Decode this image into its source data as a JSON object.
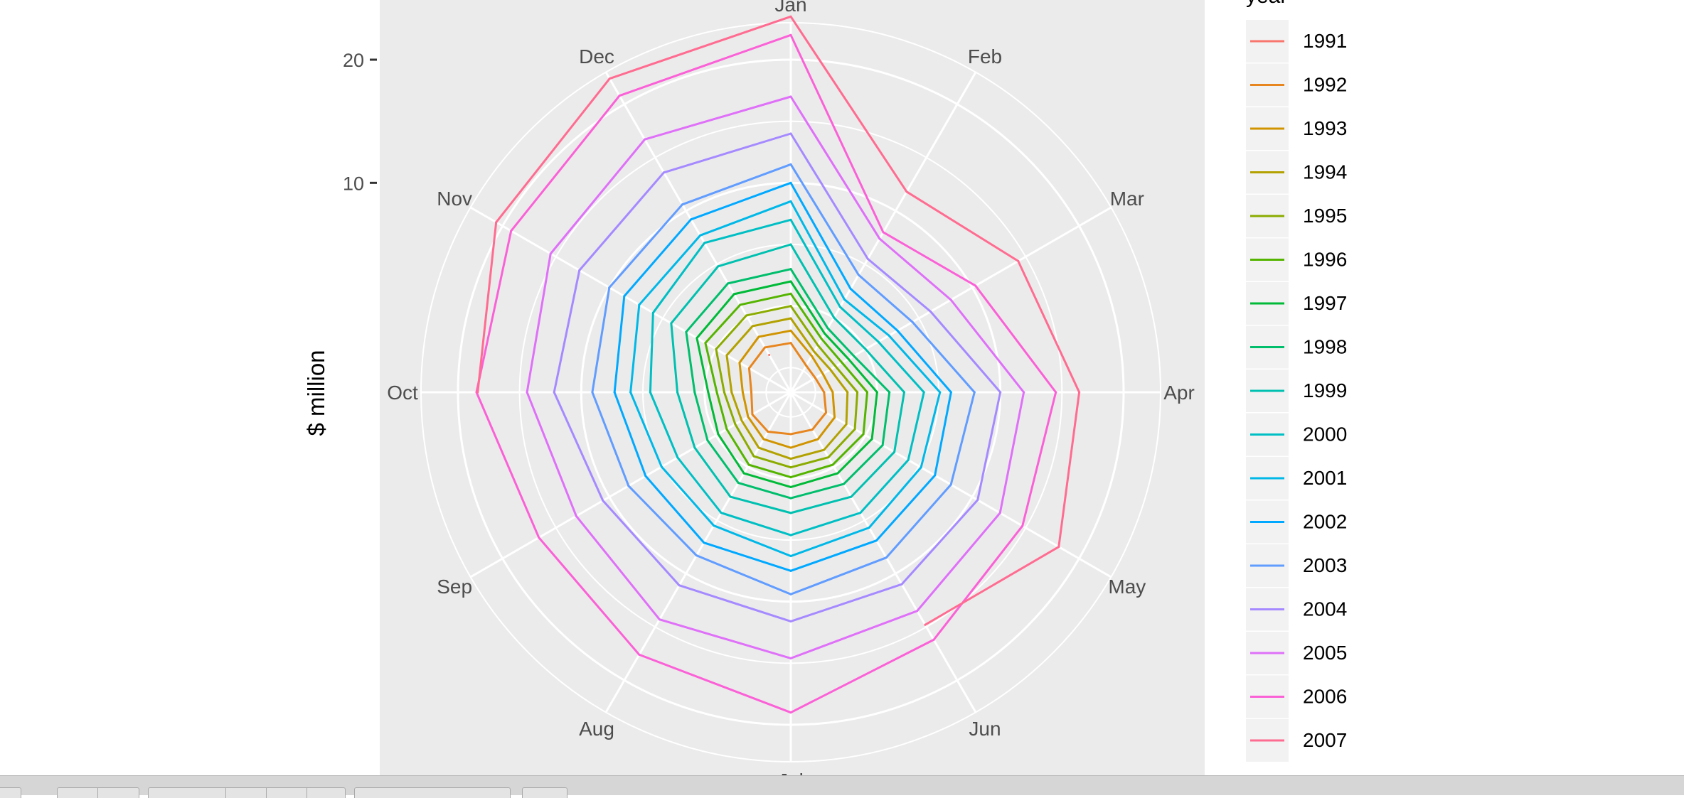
{
  "chart_data": {
    "type": "line",
    "coord": "polar",
    "title": "",
    "xlabel": "",
    "ylabel": "$ million",
    "categories": [
      "Jan",
      "Feb",
      "Mar",
      "Apr",
      "May",
      "Jun",
      "Jul",
      "Aug",
      "Sep",
      "Oct",
      "Nov",
      "Dec"
    ],
    "y_ticks": [
      10,
      20
    ],
    "ylim": [
      -7,
      23
    ],
    "grid": true,
    "legend": {
      "title": "year",
      "position": "right"
    },
    "colors": {
      "panel_background": "#ebebeb",
      "grid": "#ffffff",
      "text": "#4d4d4d"
    },
    "series": [
      {
        "name": "1991",
        "color": "#F8766D",
        "values": [
          null,
          null,
          null,
          null,
          null,
          null,
          null,
          null,
          null,
          null,
          null,
          -3.5
        ]
      },
      {
        "name": "1992",
        "color": "#E7851E",
        "values": [
          -3.0,
          -4.5,
          -4.7,
          -4.3,
          -3.7,
          -3.5,
          -3.6,
          -3.3,
          -3.4,
          -3.8,
          -3.1,
          -2.8
        ]
      },
      {
        "name": "1993",
        "color": "#D09400",
        "values": [
          -2.0,
          -3.6,
          -4.0,
          -3.6,
          -2.9,
          -2.6,
          -2.5,
          -2.6,
          -3.0,
          -3.1,
          -2.2,
          -1.8
        ]
      },
      {
        "name": "1994",
        "color": "#B2A100",
        "values": [
          -1.0,
          -3.2,
          -3.3,
          -2.4,
          -1.8,
          -1.6,
          -1.6,
          -1.8,
          -2.4,
          -2.2,
          -1.0,
          -0.8
        ]
      },
      {
        "name": "1995",
        "color": "#8BAB00",
        "values": [
          0.0,
          -2.6,
          -2.8,
          -1.6,
          -1.0,
          -0.9,
          -0.9,
          -1.0,
          -1.8,
          -1.6,
          0.0,
          0.2
        ]
      },
      {
        "name": "1996",
        "color": "#55B400",
        "values": [
          1.0,
          -2.0,
          -2.2,
          -0.8,
          -0.2,
          -0.2,
          -0.1,
          -0.2,
          -1.0,
          -1.0,
          1.0,
          1.2
        ]
      },
      {
        "name": "1997",
        "color": "#00BA38",
        "values": [
          2.0,
          -1.5,
          -1.6,
          0.0,
          0.6,
          0.6,
          0.7,
          0.6,
          -0.2,
          -0.3,
          1.8,
          2.2
        ]
      },
      {
        "name": "1998",
        "color": "#00BE6C",
        "values": [
          3.0,
          -1.0,
          -1.1,
          1.0,
          1.6,
          1.6,
          1.6,
          1.5,
          0.8,
          0.8,
          2.8,
          3.2
        ]
      },
      {
        "name": "1999",
        "color": "#00C0B0",
        "values": [
          5.0,
          0.0,
          0.0,
          2.2,
          2.7,
          2.8,
          2.8,
          2.8,
          2.0,
          2.2,
          4.2,
          4.8
        ]
      },
      {
        "name": "2000",
        "color": "#00BFC4",
        "values": [
          7.0,
          1.0,
          1.2,
          3.8,
          4.0,
          4.3,
          4.6,
          4.3,
          3.6,
          4.4,
          5.9,
          7.0
        ]
      },
      {
        "name": "2001",
        "color": "#00B8E7",
        "values": [
          8.5,
          1.7,
          2.2,
          5.1,
          5.2,
          5.7,
          6.3,
          5.5,
          5.1,
          6.0,
          7.2,
          7.7
        ]
      },
      {
        "name": "2002",
        "color": "#00A9FF",
        "values": [
          10.0,
          2.7,
          3.0,
          6.0,
          6.5,
          6.9,
          7.5,
          7.1,
          6.6,
          7.3,
          8.6,
          9.2
        ]
      },
      {
        "name": "2003",
        "color": "#619CFF",
        "values": [
          11.5,
          4.0,
          4.4,
          7.9,
          8.0,
          8.5,
          9.4,
          8.3,
          8.2,
          9.1,
          10.0,
          10.6
        ]
      },
      {
        "name": "2004",
        "color": "#A58AFF",
        "values": [
          14.0,
          5.5,
          6.1,
          10.0,
          10.5,
          11.0,
          11.6,
          11.1,
          10.6,
          12.2,
          12.8,
          13.6
        ]
      },
      {
        "name": "2005",
        "color": "#DF70F8",
        "values": [
          17.0,
          7.4,
          8.0,
          11.9,
          12.6,
          13.5,
          14.6,
          14.3,
          13.1,
          14.4,
          15.5,
          16.7
        ]
      },
      {
        "name": "2006",
        "color": "#FB61D7",
        "values": [
          22.0,
          8.0,
          10.3,
          14.5,
          14.7,
          16.2,
          19.0,
          17.6,
          16.6,
          18.5,
          19.2,
          20.8
        ]
      },
      {
        "name": "2007",
        "color": "#FF6C91",
        "values": [
          23.5,
          11.8,
          14.3,
          16.4,
          18.1,
          14.8,
          null,
          null,
          null,
          18.4,
          20.6,
          22.4
        ]
      }
    ]
  }
}
